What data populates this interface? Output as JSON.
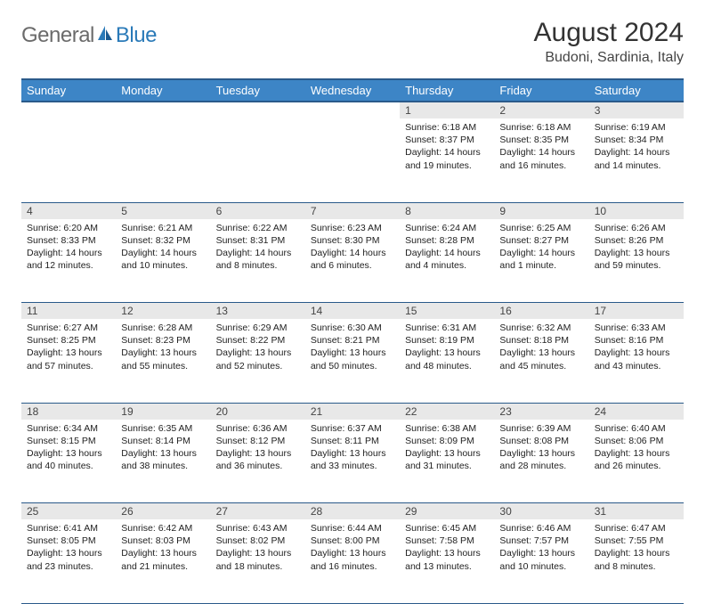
{
  "logo": {
    "text1": "General",
    "text2": "Blue"
  },
  "title": "August 2024",
  "subtitle": "Budoni, Sardinia, Italy",
  "colors": {
    "header_bg": "#3d85c6",
    "header_border": "#2a5a8a",
    "daynum_bg": "#e8e8e8",
    "text": "#222222",
    "logo_gray": "#6b6b6b",
    "logo_blue": "#2a7ab8"
  },
  "weekdays": [
    "Sunday",
    "Monday",
    "Tuesday",
    "Wednesday",
    "Thursday",
    "Friday",
    "Saturday"
  ],
  "weeks": [
    {
      "nums": [
        "",
        "",
        "",
        "",
        "1",
        "2",
        "3"
      ],
      "cells": [
        null,
        null,
        null,
        null,
        {
          "sunrise": "Sunrise: 6:18 AM",
          "sunset": "Sunset: 8:37 PM",
          "day1": "Daylight: 14 hours",
          "day2": "and 19 minutes."
        },
        {
          "sunrise": "Sunrise: 6:18 AM",
          "sunset": "Sunset: 8:35 PM",
          "day1": "Daylight: 14 hours",
          "day2": "and 16 minutes."
        },
        {
          "sunrise": "Sunrise: 6:19 AM",
          "sunset": "Sunset: 8:34 PM",
          "day1": "Daylight: 14 hours",
          "day2": "and 14 minutes."
        }
      ]
    },
    {
      "nums": [
        "4",
        "5",
        "6",
        "7",
        "8",
        "9",
        "10"
      ],
      "cells": [
        {
          "sunrise": "Sunrise: 6:20 AM",
          "sunset": "Sunset: 8:33 PM",
          "day1": "Daylight: 14 hours",
          "day2": "and 12 minutes."
        },
        {
          "sunrise": "Sunrise: 6:21 AM",
          "sunset": "Sunset: 8:32 PM",
          "day1": "Daylight: 14 hours",
          "day2": "and 10 minutes."
        },
        {
          "sunrise": "Sunrise: 6:22 AM",
          "sunset": "Sunset: 8:31 PM",
          "day1": "Daylight: 14 hours",
          "day2": "and 8 minutes."
        },
        {
          "sunrise": "Sunrise: 6:23 AM",
          "sunset": "Sunset: 8:30 PM",
          "day1": "Daylight: 14 hours",
          "day2": "and 6 minutes."
        },
        {
          "sunrise": "Sunrise: 6:24 AM",
          "sunset": "Sunset: 8:28 PM",
          "day1": "Daylight: 14 hours",
          "day2": "and 4 minutes."
        },
        {
          "sunrise": "Sunrise: 6:25 AM",
          "sunset": "Sunset: 8:27 PM",
          "day1": "Daylight: 14 hours",
          "day2": "and 1 minute."
        },
        {
          "sunrise": "Sunrise: 6:26 AM",
          "sunset": "Sunset: 8:26 PM",
          "day1": "Daylight: 13 hours",
          "day2": "and 59 minutes."
        }
      ]
    },
    {
      "nums": [
        "11",
        "12",
        "13",
        "14",
        "15",
        "16",
        "17"
      ],
      "cells": [
        {
          "sunrise": "Sunrise: 6:27 AM",
          "sunset": "Sunset: 8:25 PM",
          "day1": "Daylight: 13 hours",
          "day2": "and 57 minutes."
        },
        {
          "sunrise": "Sunrise: 6:28 AM",
          "sunset": "Sunset: 8:23 PM",
          "day1": "Daylight: 13 hours",
          "day2": "and 55 minutes."
        },
        {
          "sunrise": "Sunrise: 6:29 AM",
          "sunset": "Sunset: 8:22 PM",
          "day1": "Daylight: 13 hours",
          "day2": "and 52 minutes."
        },
        {
          "sunrise": "Sunrise: 6:30 AM",
          "sunset": "Sunset: 8:21 PM",
          "day1": "Daylight: 13 hours",
          "day2": "and 50 minutes."
        },
        {
          "sunrise": "Sunrise: 6:31 AM",
          "sunset": "Sunset: 8:19 PM",
          "day1": "Daylight: 13 hours",
          "day2": "and 48 minutes."
        },
        {
          "sunrise": "Sunrise: 6:32 AM",
          "sunset": "Sunset: 8:18 PM",
          "day1": "Daylight: 13 hours",
          "day2": "and 45 minutes."
        },
        {
          "sunrise": "Sunrise: 6:33 AM",
          "sunset": "Sunset: 8:16 PM",
          "day1": "Daylight: 13 hours",
          "day2": "and 43 minutes."
        }
      ]
    },
    {
      "nums": [
        "18",
        "19",
        "20",
        "21",
        "22",
        "23",
        "24"
      ],
      "cells": [
        {
          "sunrise": "Sunrise: 6:34 AM",
          "sunset": "Sunset: 8:15 PM",
          "day1": "Daylight: 13 hours",
          "day2": "and 40 minutes."
        },
        {
          "sunrise": "Sunrise: 6:35 AM",
          "sunset": "Sunset: 8:14 PM",
          "day1": "Daylight: 13 hours",
          "day2": "and 38 minutes."
        },
        {
          "sunrise": "Sunrise: 6:36 AM",
          "sunset": "Sunset: 8:12 PM",
          "day1": "Daylight: 13 hours",
          "day2": "and 36 minutes."
        },
        {
          "sunrise": "Sunrise: 6:37 AM",
          "sunset": "Sunset: 8:11 PM",
          "day1": "Daylight: 13 hours",
          "day2": "and 33 minutes."
        },
        {
          "sunrise": "Sunrise: 6:38 AM",
          "sunset": "Sunset: 8:09 PM",
          "day1": "Daylight: 13 hours",
          "day2": "and 31 minutes."
        },
        {
          "sunrise": "Sunrise: 6:39 AM",
          "sunset": "Sunset: 8:08 PM",
          "day1": "Daylight: 13 hours",
          "day2": "and 28 minutes."
        },
        {
          "sunrise": "Sunrise: 6:40 AM",
          "sunset": "Sunset: 8:06 PM",
          "day1": "Daylight: 13 hours",
          "day2": "and 26 minutes."
        }
      ]
    },
    {
      "nums": [
        "25",
        "26",
        "27",
        "28",
        "29",
        "30",
        "31"
      ],
      "cells": [
        {
          "sunrise": "Sunrise: 6:41 AM",
          "sunset": "Sunset: 8:05 PM",
          "day1": "Daylight: 13 hours",
          "day2": "and 23 minutes."
        },
        {
          "sunrise": "Sunrise: 6:42 AM",
          "sunset": "Sunset: 8:03 PM",
          "day1": "Daylight: 13 hours",
          "day2": "and 21 minutes."
        },
        {
          "sunrise": "Sunrise: 6:43 AM",
          "sunset": "Sunset: 8:02 PM",
          "day1": "Daylight: 13 hours",
          "day2": "and 18 minutes."
        },
        {
          "sunrise": "Sunrise: 6:44 AM",
          "sunset": "Sunset: 8:00 PM",
          "day1": "Daylight: 13 hours",
          "day2": "and 16 minutes."
        },
        {
          "sunrise": "Sunrise: 6:45 AM",
          "sunset": "Sunset: 7:58 PM",
          "day1": "Daylight: 13 hours",
          "day2": "and 13 minutes."
        },
        {
          "sunrise": "Sunrise: 6:46 AM",
          "sunset": "Sunset: 7:57 PM",
          "day1": "Daylight: 13 hours",
          "day2": "and 10 minutes."
        },
        {
          "sunrise": "Sunrise: 6:47 AM",
          "sunset": "Sunset: 7:55 PM",
          "day1": "Daylight: 13 hours",
          "day2": "and 8 minutes."
        }
      ]
    }
  ]
}
